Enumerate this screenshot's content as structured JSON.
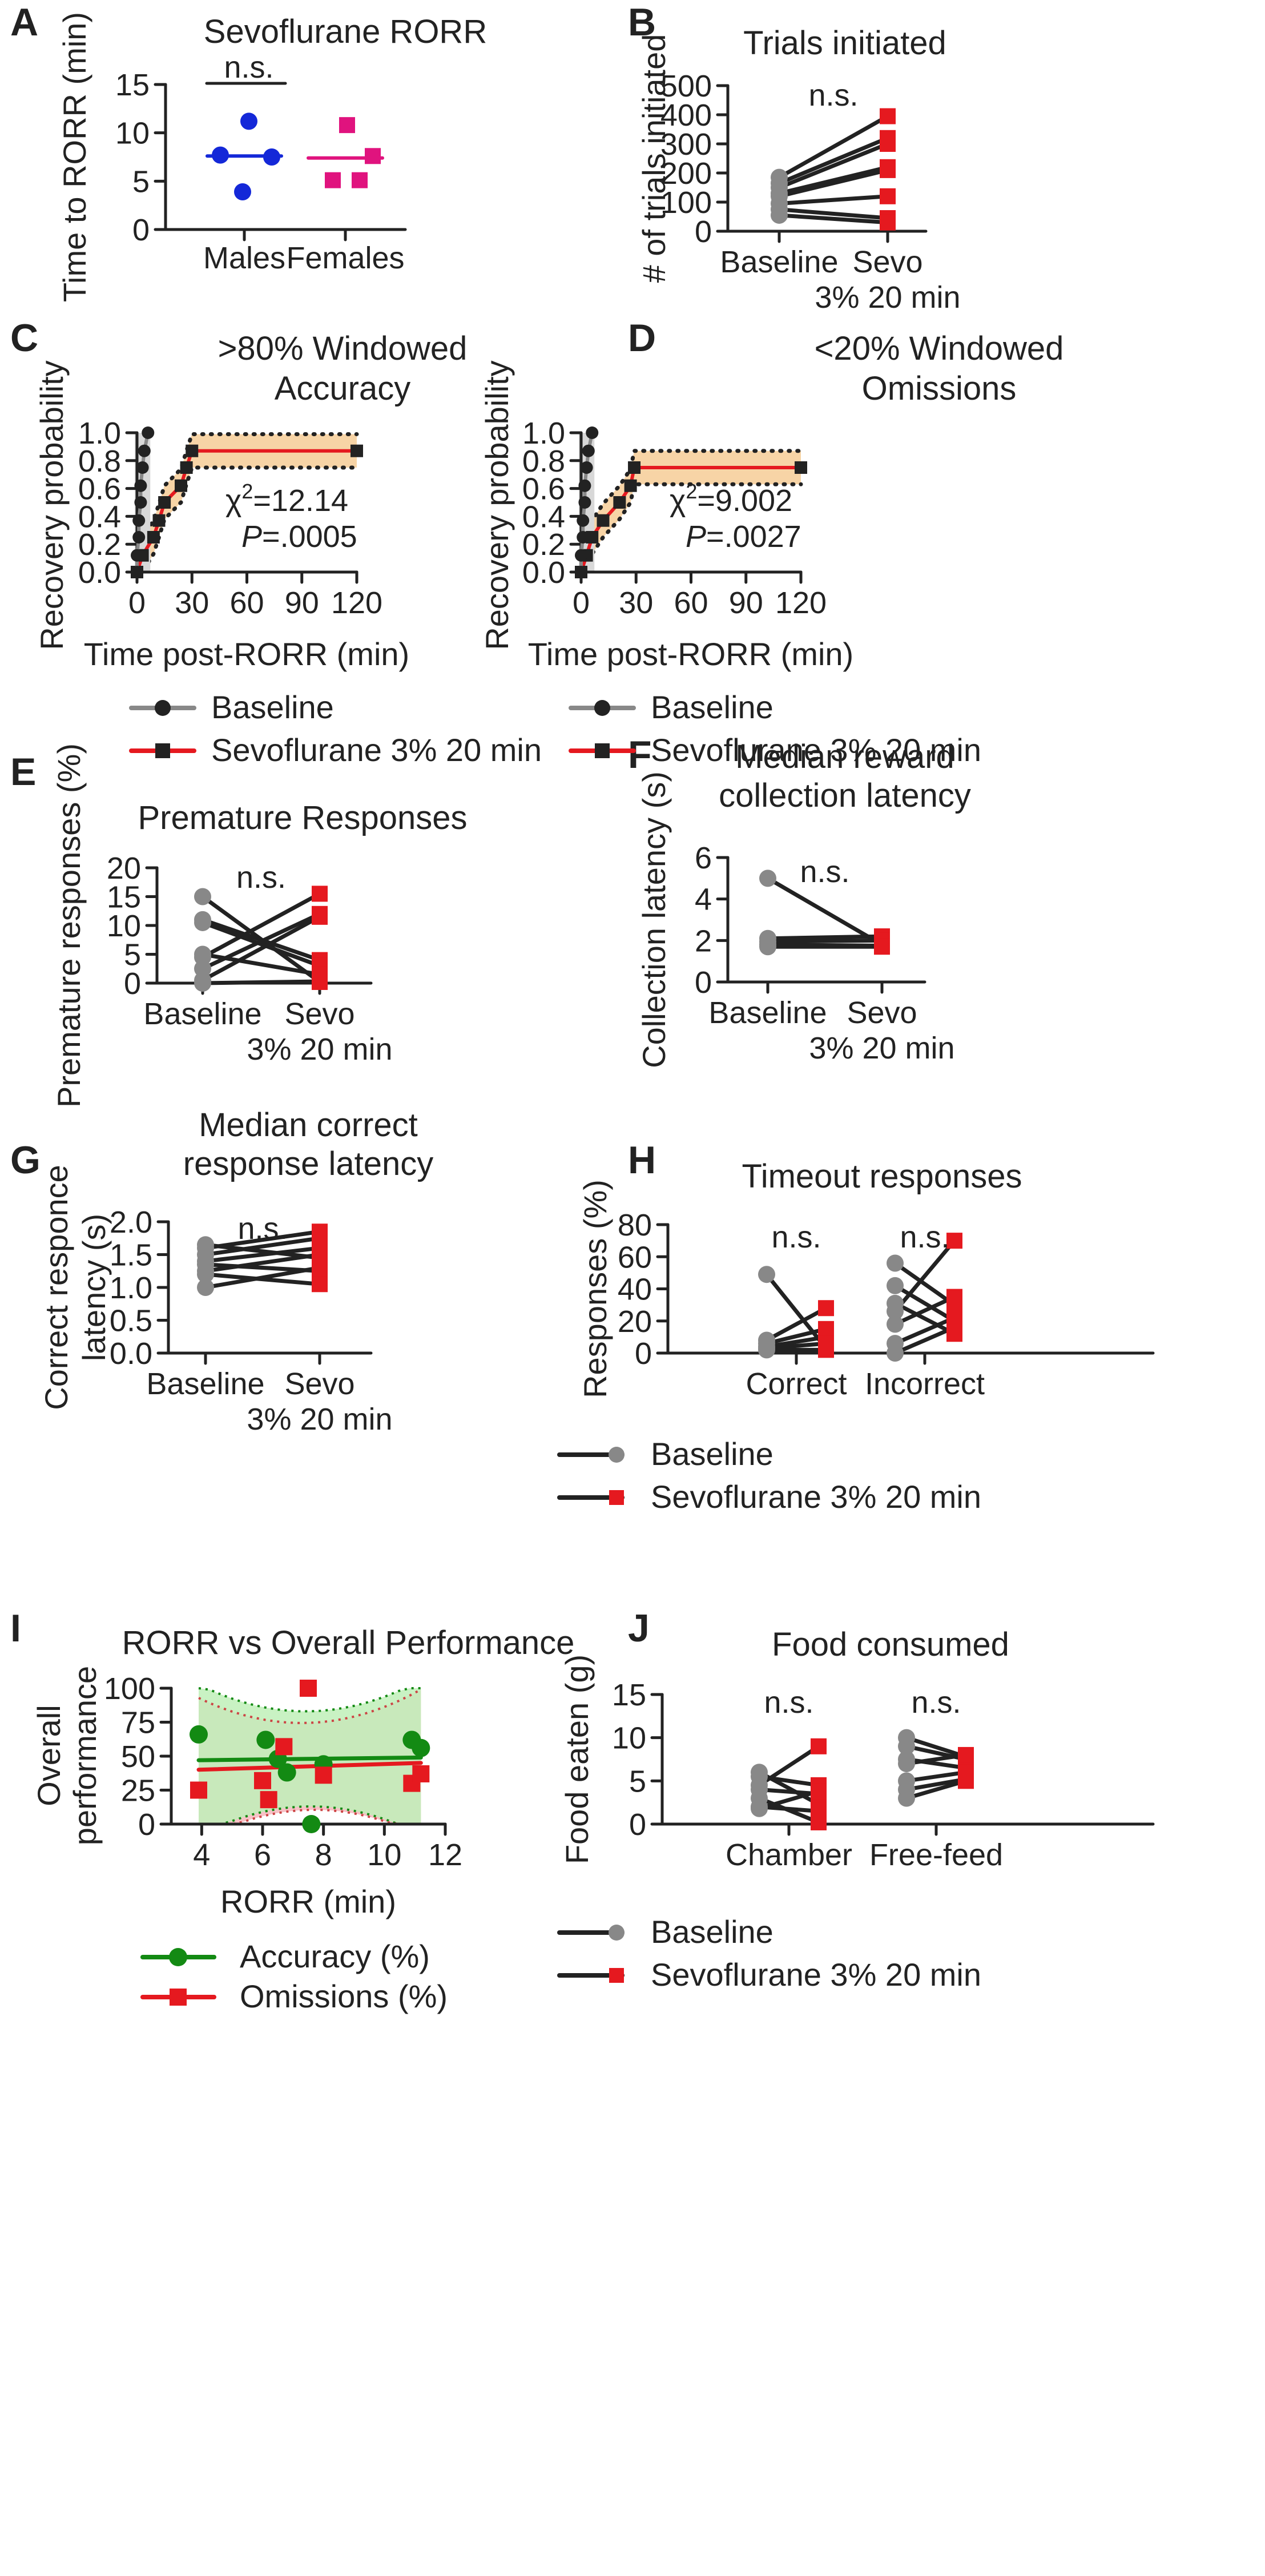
{
  "colors": {
    "black": "#222222",
    "gray": "#888888",
    "red": "#e5191f",
    "blue": "#1428d8",
    "magenta": "#e0137e",
    "green": "#138a13",
    "orange_band": "#f7d4a6",
    "green_band": "#bff0b8",
    "pink_band": "#f7c2c7"
  },
  "chart_data": [
    {
      "id": "A",
      "type": "scatter",
      "title": "Sevoflurane RORR",
      "ylabel": "Time to RORR (min)",
      "ylim": [
        0,
        15
      ],
      "yticks": [
        0,
        5,
        10,
        15
      ],
      "categories": [
        "Males",
        "Females"
      ],
      "series": [
        {
          "name": "Males",
          "values": [
            11.2,
            7.7,
            7.5,
            3.9
          ],
          "median": 7.6,
          "color": "#1428d8"
        },
        {
          "name": "Females",
          "values": [
            10.8,
            7.6,
            5.1,
            5.1
          ],
          "median": 7.4,
          "color": "#e0137e"
        }
      ],
      "annotation": "n.s."
    },
    {
      "id": "B",
      "type": "line",
      "title": "Trials initiated",
      "ylabel": "# of trials initiated",
      "ylim": [
        0,
        500
      ],
      "yticks": [
        0,
        100,
        200,
        300,
        400,
        500
      ],
      "categories": [
        "Baseline",
        "Sevo"
      ],
      "category_sublabel": "3% 20 min",
      "pairs": [
        [
          185,
          395
        ],
        [
          165,
          320
        ],
        [
          150,
          300
        ],
        [
          130,
          220
        ],
        [
          120,
          210
        ],
        [
          95,
          120
        ],
        [
          75,
          45
        ],
        [
          55,
          30
        ]
      ],
      "annotation": "n.s."
    },
    {
      "id": "C",
      "type": "line",
      "title": ">80% Windowed",
      "title2": "Accuracy",
      "ylabel": "Recovery probability",
      "xlabel": "Time post-RORR (min)",
      "xlim": [
        0,
        120
      ],
      "xticks": [
        0,
        30,
        60,
        90,
        120
      ],
      "ylim": [
        0,
        1
      ],
      "yticks": [
        "0.0",
        "0.2",
        "0.4",
        "0.6",
        "0.8",
        "1.0"
      ],
      "series": [
        {
          "name": "Baseline",
          "points": [
            [
              0,
              0
            ],
            [
              0,
              0.12
            ],
            [
              1,
              0.25
            ],
            [
              1,
              0.37
            ],
            [
              2,
              0.5
            ],
            [
              2,
              0.62
            ],
            [
              3,
              0.75
            ],
            [
              4,
              0.87
            ],
            [
              6,
              1.0
            ]
          ]
        },
        {
          "name": "Sevoflurane  3% 20 min",
          "points": [
            [
              0,
              0
            ],
            [
              3,
              0.12
            ],
            [
              9,
              0.25
            ],
            [
              12,
              0.37
            ],
            [
              15,
              0.5
            ],
            [
              24,
              0.62
            ],
            [
              27,
              0.75
            ],
            [
              30,
              0.87
            ],
            [
              120,
              0.87
            ]
          ]
        }
      ],
      "stat": {
        "chi": "χ",
        "sup": "2",
        "chi_val": "=12.14",
        "p": "P",
        "p_val": "=.0005"
      }
    },
    {
      "id": "D",
      "type": "line",
      "title": "<20% Windowed",
      "title2": "Omissions",
      "ylabel": "Recovery probability",
      "xlabel": "Time post-RORR (min)",
      "xlim": [
        0,
        120
      ],
      "xticks": [
        0,
        30,
        60,
        90,
        120
      ],
      "ylim": [
        0,
        1
      ],
      "yticks": [
        "0.0",
        "0.2",
        "0.4",
        "0.6",
        "0.8",
        "1.0"
      ],
      "series": [
        {
          "name": "Baseline",
          "points": [
            [
              0,
              0
            ],
            [
              0,
              0.12
            ],
            [
              1,
              0.25
            ],
            [
              1,
              0.37
            ],
            [
              2,
              0.5
            ],
            [
              2,
              0.62
            ],
            [
              3,
              0.75
            ],
            [
              4,
              0.87
            ],
            [
              6,
              1.0
            ]
          ]
        },
        {
          "name": "Sevoflurane 3% 20 min",
          "points": [
            [
              0,
              0
            ],
            [
              3,
              0.12
            ],
            [
              6,
              0.25
            ],
            [
              12,
              0.37
            ],
            [
              21,
              0.5
            ],
            [
              27,
              0.62
            ],
            [
              29,
              0.75
            ],
            [
              120,
              0.75
            ]
          ]
        }
      ],
      "stat": {
        "chi": "χ",
        "sup": "2",
        "chi_val": "=9.002",
        "p": "P",
        "p_val": "=.0027"
      }
    },
    {
      "id": "E",
      "type": "line",
      "title": "Premature Responses",
      "ylabel": "Premature responses (%)",
      "ylim": [
        0,
        20
      ],
      "yticks": [
        0,
        5,
        10,
        15,
        20
      ],
      "categories": [
        "Baseline",
        "Sevo"
      ],
      "category_sublabel": "3% 20 min",
      "pairs": [
        [
          15,
          0.2
        ],
        [
          11,
          4
        ],
        [
          10.5,
          3
        ],
        [
          5,
          1.5
        ],
        [
          4.5,
          15.5
        ],
        [
          2.5,
          12
        ],
        [
          0.5,
          11.5
        ],
        [
          0,
          0.3
        ]
      ],
      "annotation": "n.s."
    },
    {
      "id": "F",
      "type": "line",
      "title": "Median reward",
      "title2": "collection latency",
      "ylabel": "Collection latency (s)",
      "ylim": [
        0,
        6
      ],
      "yticks": [
        0,
        2,
        4,
        6
      ],
      "categories": [
        "Baseline",
        "Sevo"
      ],
      "category_sublabel": "3% 20 min",
      "pairs": [
        [
          5.0,
          1.8
        ],
        [
          2.1,
          2.2
        ],
        [
          1.95,
          2.0
        ],
        [
          1.8,
          1.75
        ],
        [
          1.7,
          1.7
        ]
      ],
      "annotation": "n.s."
    },
    {
      "id": "G",
      "type": "line",
      "title": "Median correct",
      "title2": "response latency",
      "ylabel": "Correct responce",
      "ylabel2": "latency (s)",
      "ylim": [
        0,
        2
      ],
      "yticks": [
        "0.0",
        "0.5",
        "1.0",
        "1.5",
        "2.0"
      ],
      "categories": [
        "Baseline",
        "Sevo"
      ],
      "category_sublabel": "3% 20 min",
      "pairs": [
        [
          1.65,
          1.45
        ],
        [
          1.6,
          1.85
        ],
        [
          1.5,
          1.75
        ],
        [
          1.4,
          1.6
        ],
        [
          1.35,
          1.25
        ],
        [
          1.25,
          1.5
        ],
        [
          1.2,
          1.05
        ],
        [
          1.0,
          1.3
        ]
      ],
      "annotation": "n.s."
    },
    {
      "id": "H",
      "type": "line",
      "title": "Timeout responses",
      "ylabel": "Responses (%)",
      "ylim": [
        0,
        80
      ],
      "yticks": [
        0,
        20,
        40,
        60,
        80
      ],
      "groups": [
        "Correct",
        "Incorrect"
      ],
      "group_pairs": [
        [
          [
            49,
            3
          ],
          [
            8,
            28
          ],
          [
            6,
            15
          ],
          [
            4,
            10
          ],
          [
            3,
            6
          ],
          [
            2,
            2
          ]
        ],
        [
          [
            56,
            30
          ],
          [
            42,
            20
          ],
          [
            31,
            12
          ],
          [
            26,
            70
          ],
          [
            18,
            35
          ],
          [
            6,
            22
          ],
          [
            0,
            16
          ]
        ]
      ],
      "annotations": [
        "n.s.",
        "n.s."
      ],
      "legend": [
        "Baseline",
        "Sevoflurane 3% 20 min"
      ]
    },
    {
      "id": "I",
      "type": "scatter",
      "title": "RORR vs Overall Performance",
      "ylabel": "Overall",
      "ylabel2": "performance",
      "xlabel": "RORR (min)",
      "xlim": [
        3,
        12
      ],
      "xticks": [
        4,
        6,
        8,
        10,
        12
      ],
      "ylim": [
        0,
        100
      ],
      "yticks": [
        0,
        25,
        50,
        75,
        100
      ],
      "series": [
        {
          "name": "Accuracy (%)",
          "points": [
            [
              3.9,
              66
            ],
            [
              6.1,
              62
            ],
            [
              6.5,
              48
            ],
            [
              6.8,
              38
            ],
            [
              7.6,
              0
            ],
            [
              8.0,
              44
            ],
            [
              10.9,
              62
            ],
            [
              11.2,
              56
            ]
          ],
          "fit": [
            47,
            49
          ]
        },
        {
          "name": "Omissions (%)",
          "points": [
            [
              3.9,
              25
            ],
            [
              6.0,
              32
            ],
            [
              6.2,
              18
            ],
            [
              6.7,
              57
            ],
            [
              7.5,
              100
            ],
            [
              8.0,
              36
            ],
            [
              10.9,
              30
            ],
            [
              11.2,
              37
            ]
          ],
          "fit": [
            40,
            45
          ]
        }
      ]
    },
    {
      "id": "J",
      "type": "line",
      "title": "Food consumed",
      "ylabel": "Food eaten (g)",
      "ylim": [
        0,
        15
      ],
      "yticks": [
        0,
        5,
        10,
        15
      ],
      "groups": [
        "Chamber",
        "Free-feed"
      ],
      "group_pairs": [
        [
          [
            6,
            2.3
          ],
          [
            5.5,
            4.5
          ],
          [
            4.5,
            9
          ],
          [
            4,
            3.5
          ],
          [
            3,
            0.2
          ],
          [
            2,
            1.5
          ],
          [
            1.8,
            3.8
          ]
        ],
        [
          [
            10,
            7.8
          ],
          [
            9,
            7.5
          ],
          [
            7.5,
            6.5
          ],
          [
            7,
            8
          ],
          [
            5,
            6
          ],
          [
            4,
            5.2
          ],
          [
            3,
            5
          ]
        ]
      ],
      "annotations": [
        "n.s.",
        "n.s."
      ],
      "legend": [
        "Baseline",
        "Sevoflurane 3% 20 min"
      ]
    }
  ]
}
